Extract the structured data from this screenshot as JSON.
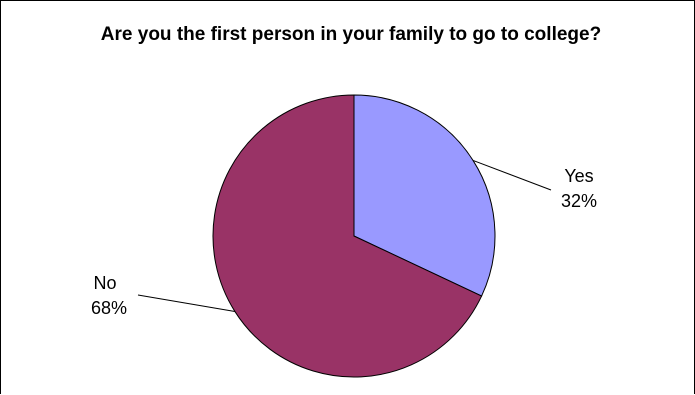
{
  "chart_data": {
    "type": "pie",
    "title": "Are you the first person in your family to go to college?",
    "categories": [
      "Yes",
      "No"
    ],
    "values": [
      32,
      68
    ],
    "value_labels": [
      "32%",
      "68%"
    ],
    "colors": [
      "#9999ff",
      "#993366"
    ],
    "start_angle_deg": 0,
    "direction": "clockwise",
    "legend": "none"
  }
}
